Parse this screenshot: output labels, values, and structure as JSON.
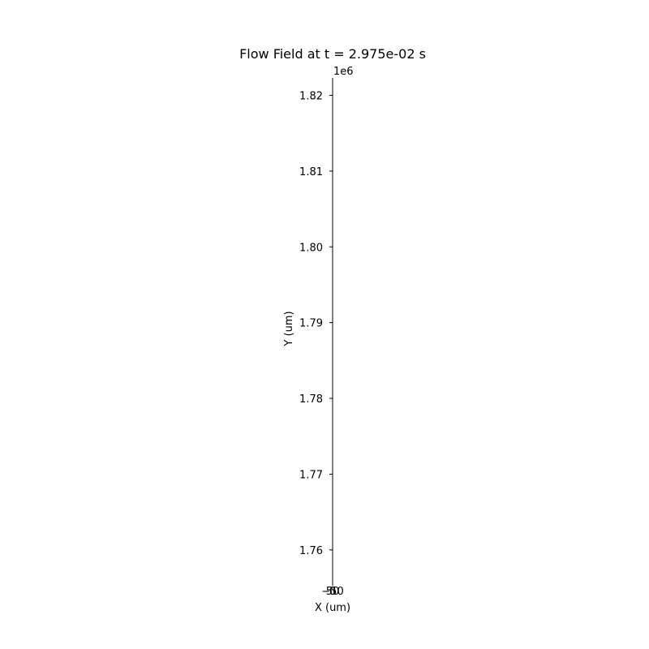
{
  "chart_data": {
    "type": "line",
    "title": "Flow Field at t = 2.975e-02 s",
    "xlabel": "X (um)",
    "ylabel": "Y (um)",
    "y_offset_label": "1e6",
    "x_tick_labels": [
      "−50",
      "0",
      "50"
    ],
    "x_ticks": [
      -50,
      0,
      50
    ],
    "y_ticks": [
      1.76,
      1.77,
      1.78,
      1.79,
      1.8,
      1.81,
      1.82
    ],
    "y_tick_labels": [
      "1.76",
      "1.77",
      "1.78",
      "1.79",
      "1.80",
      "1.81",
      "1.82"
    ],
    "ylim": [
      1.7557,
      1.8223
    ],
    "grid": false,
    "series": [],
    "colors": {
      "axis": "#000000",
      "text": "#000000",
      "background": "#ffffff"
    }
  }
}
